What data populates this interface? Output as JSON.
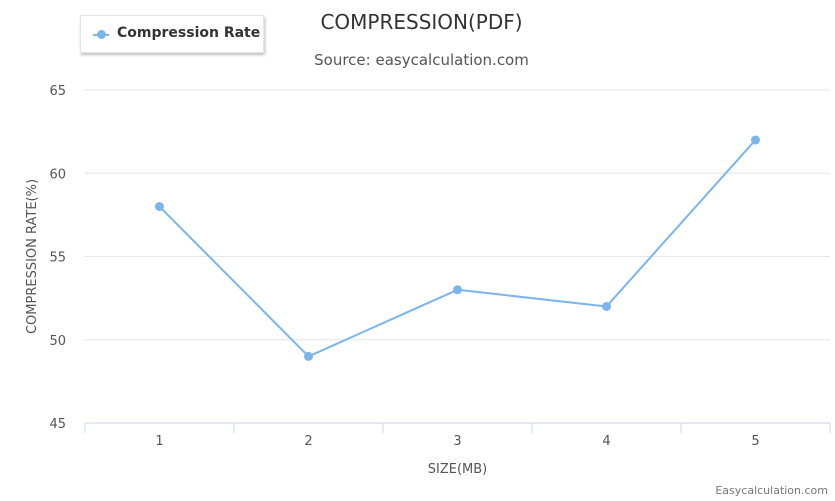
{
  "chart_data": {
    "type": "line",
    "title": "COMPRESSION(PDF)",
    "subtitle": "Source: easycalculation.com",
    "xlabel": "SIZE(MB)",
    "ylabel": "COMPRESSION RATE(%)",
    "categories": [
      "1",
      "2",
      "3",
      "4",
      "5"
    ],
    "series": [
      {
        "name": "Compression Rate",
        "values": [
          58,
          49,
          53,
          52,
          62
        ]
      }
    ],
    "ylim": [
      45,
      65
    ],
    "yticks": [
      45,
      50,
      55,
      60,
      65
    ],
    "grid": true,
    "legend_position": "top-left",
    "colors": {
      "series": "#7cb5ec",
      "grid": "#e6e6e6",
      "axis": "#ccd6eb"
    }
  },
  "credit": "Easycalculation.com"
}
